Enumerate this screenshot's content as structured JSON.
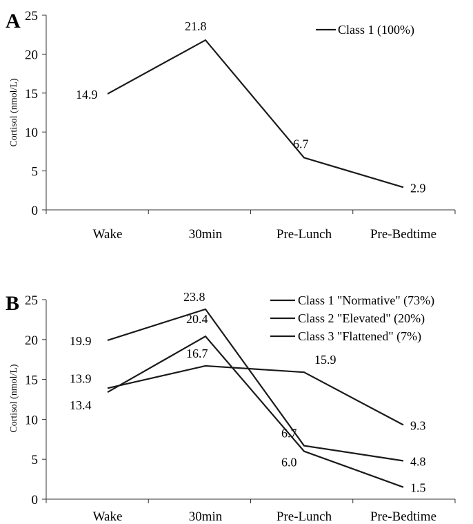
{
  "chart_data": [
    {
      "panel": "A",
      "type": "line",
      "categories": [
        "Wake",
        "30min",
        "Pre-Lunch",
        "Pre-Bedtime"
      ],
      "ylabel": "Cortisol (nmol/L)",
      "xlabel": "",
      "ylim": [
        0,
        25
      ],
      "yticks": [
        0,
        5,
        10,
        15,
        20,
        25
      ],
      "grid": false,
      "legend_position": "top-right",
      "series": [
        {
          "name": "Class 1 (100%)",
          "values": [
            14.9,
            21.8,
            6.7,
            2.9
          ],
          "labels": [
            "14.9",
            "21.8",
            "6.7",
            "2.9"
          ],
          "color": "#1a1a1a"
        }
      ]
    },
    {
      "panel": "B",
      "type": "line",
      "categories": [
        "Wake",
        "30min",
        "Pre-Lunch",
        "Pre-Bedtime"
      ],
      "ylabel": "Cortisol (nmol/L)",
      "xlabel": "",
      "ylim": [
        0,
        25
      ],
      "yticks": [
        0,
        5,
        10,
        15,
        20,
        25
      ],
      "grid": false,
      "legend_position": "top-right",
      "series": [
        {
          "name": "Class 1 \"Normative\" (73%)",
          "values": [
            13.4,
            20.4,
            6.0,
            1.5
          ],
          "labels": [
            "13.4",
            "20.4",
            "6.0",
            "1.5"
          ],
          "color": "#1a1a1a"
        },
        {
          "name": "Class 2 \"Elevated\" (20%)",
          "values": [
            19.9,
            23.8,
            6.7,
            4.8
          ],
          "labels": [
            "19.9",
            "23.8",
            "6.7",
            "4.8"
          ],
          "color": "#1a1a1a"
        },
        {
          "name": "Class 3 \"Flattened\" (7%)",
          "values": [
            13.9,
            16.7,
            15.9,
            9.3
          ],
          "labels": [
            "13.9",
            "16.7",
            "15.9",
            "9.3"
          ],
          "color": "#1a1a1a"
        }
      ]
    }
  ]
}
